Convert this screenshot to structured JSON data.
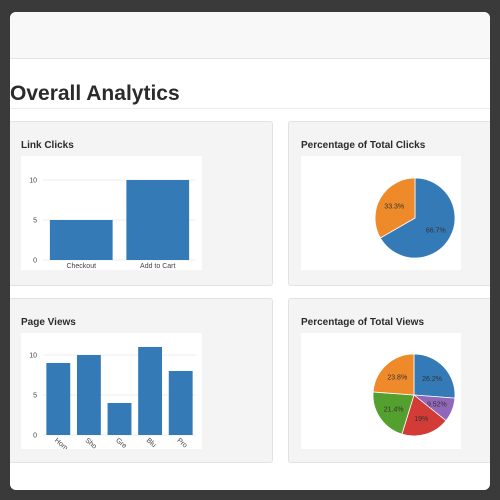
{
  "page": {
    "title": "Overall Analytics"
  },
  "panels": {
    "link_clicks": {
      "title": "Link Clicks"
    },
    "pct_clicks": {
      "title": "Percentage of Total Clicks"
    },
    "page_views": {
      "title": "Page Views"
    },
    "pct_views": {
      "title": "Percentage of Total Views"
    }
  },
  "colors": {
    "blue": "#337ab7",
    "orange": "#ee8a2a",
    "green": "#54a02e",
    "red": "#d33b36",
    "purple": "#9067b9"
  },
  "chart_data": [
    {
      "type": "bar",
      "id": "link_clicks",
      "title": "Link Clicks",
      "categories": [
        "Checkout",
        "Add to Cart"
      ],
      "values": [
        5,
        10
      ],
      "yticks": [
        "0",
        "5",
        "10"
      ],
      "ylim": [
        0,
        12
      ]
    },
    {
      "type": "pie",
      "id": "pct_clicks",
      "title": "Percentage of Total Clicks",
      "slices": [
        {
          "value": 66.7,
          "label": "66.7%",
          "color": "#337ab7"
        },
        {
          "value": 33.3,
          "label": "33.3%",
          "color": "#ee8a2a"
        }
      ]
    },
    {
      "type": "bar",
      "id": "page_views",
      "title": "Page Views",
      "categories": [
        "Hom",
        "Sho",
        "Gre",
        "Blu",
        "Pro"
      ],
      "values": [
        9,
        10,
        4,
        11,
        8
      ],
      "yticks": [
        "0",
        "5",
        "10"
      ],
      "ylim": [
        0,
        12
      ]
    },
    {
      "type": "pie",
      "id": "pct_views",
      "title": "Percentage of Total Views",
      "slices": [
        {
          "value": 26.2,
          "label": "26.2%",
          "color": "#337ab7"
        },
        {
          "value": 9.52,
          "label": "9.52%",
          "color": "#9067b9"
        },
        {
          "value": 19,
          "label": "19%",
          "color": "#d33b36"
        },
        {
          "value": 21.4,
          "label": "21.4%",
          "color": "#54a02e"
        },
        {
          "value": 23.8,
          "label": "23.8%",
          "color": "#ee8a2a"
        }
      ]
    }
  ]
}
